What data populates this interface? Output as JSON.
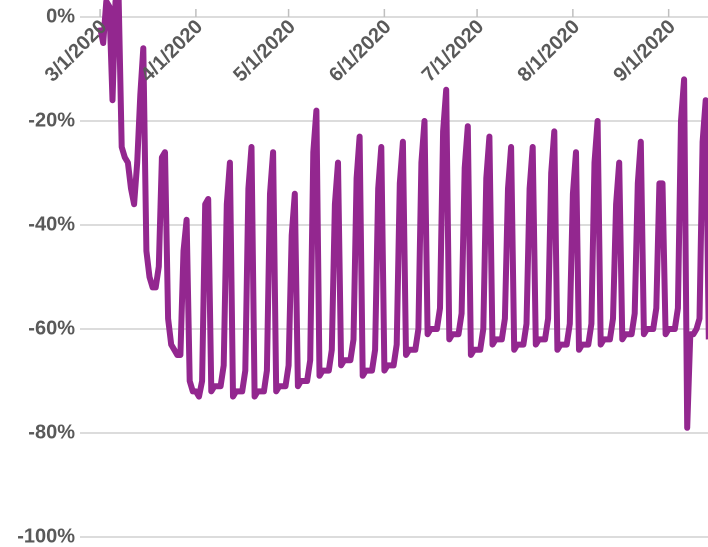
{
  "chart_data": {
    "type": "line",
    "color": "#93278f",
    "x": [
      0,
      1,
      2,
      3,
      4,
      5,
      6,
      7,
      8,
      9,
      10,
      11,
      12,
      13,
      14,
      15,
      16,
      17,
      18,
      19,
      20,
      21,
      22,
      23,
      24,
      25,
      26,
      27,
      28,
      29,
      30,
      31,
      32,
      33,
      34,
      35,
      36,
      37,
      38,
      39,
      40,
      41,
      42,
      43,
      44,
      45,
      46,
      47,
      48,
      49,
      50,
      51,
      52,
      53,
      54,
      55,
      56,
      57,
      58,
      59,
      60,
      61,
      62,
      63,
      64,
      65,
      66,
      67,
      68,
      69,
      70,
      71,
      72,
      73,
      74,
      75,
      76,
      77,
      78,
      79,
      80,
      81,
      82,
      83,
      84,
      85,
      86,
      87,
      88,
      89,
      90,
      91,
      92,
      93,
      94,
      95,
      96,
      97,
      98,
      99,
      100,
      101,
      102,
      103,
      104,
      105,
      106,
      107,
      108,
      109,
      110,
      111,
      112,
      113,
      114,
      115,
      116,
      117,
      118,
      119,
      120,
      121,
      122,
      123,
      124,
      125,
      126,
      127,
      128,
      129,
      130,
      131,
      132,
      133,
      134,
      135,
      136,
      137,
      138,
      139,
      140,
      141,
      142,
      143,
      144,
      145,
      146,
      147,
      148,
      149,
      150,
      151,
      152,
      153,
      154,
      155,
      156,
      157,
      158,
      159,
      160,
      161,
      162,
      163,
      164,
      165,
      166,
      167,
      168,
      169,
      170,
      171,
      172,
      173,
      174,
      175,
      176,
      177,
      178,
      179,
      180,
      181,
      182,
      183,
      184,
      185,
      186,
      187,
      188,
      189,
      190,
      191,
      192,
      193,
      194,
      195,
      196,
      197
    ],
    "values": [
      -2,
      -5,
      3,
      2,
      -16,
      3,
      4,
      -25,
      -27,
      -28,
      -33,
      -36,
      -28,
      -15,
      -6,
      -45,
      -50,
      -52,
      -52,
      -48,
      -27,
      -26,
      -58,
      -63,
      -64,
      -65,
      -65,
      -45,
      -39,
      -70,
      -72,
      -72,
      -73,
      -70,
      -36,
      -35,
      -72,
      -71,
      -71,
      -71,
      -67,
      -36,
      -28,
      -73,
      -72,
      -72,
      -72,
      -68,
      -33,
      -25,
      -73,
      -72,
      -72,
      -72,
      -68,
      -34,
      -26,
      -72,
      -71,
      -71,
      -71,
      -67,
      -42,
      -34,
      -71,
      -70,
      -70,
      -70,
      -66,
      -26,
      -18,
      -69,
      -68,
      -68,
      -68,
      -64,
      -36,
      -28,
      -67,
      -66,
      -66,
      -66,
      -62,
      -31,
      -23,
      -69,
      -68,
      -68,
      -68,
      -64,
      -33,
      -25,
      -68,
      -67,
      -67,
      -67,
      -63,
      -32,
      -24,
      -65,
      -64,
      -64,
      -64,
      -60,
      -28,
      -20,
      -61,
      -60,
      -60,
      -60,
      -56,
      -22,
      -14,
      -62,
      -61,
      -61,
      -61,
      -57,
      -29,
      -21,
      -65,
      -64,
      -64,
      -64,
      -60,
      -31,
      -23,
      -63,
      -62,
      -62,
      -62,
      -58,
      -33,
      -25,
      -64,
      -63,
      -63,
      -63,
      -59,
      -33,
      -25,
      -63,
      -62,
      -62,
      -62,
      -58,
      -30,
      -22,
      -64,
      -63,
      -63,
      -63,
      -59,
      -34,
      -26,
      -64,
      -63,
      -63,
      -63,
      -59,
      -28,
      -20,
      -63,
      -62,
      -62,
      -62,
      -58,
      -36,
      -28,
      -62,
      -61,
      -61,
      -61,
      -57,
      -32,
      -24,
      -61,
      -60,
      -60,
      -60,
      -56,
      -32,
      -32,
      -61,
      -60,
      -60,
      -60,
      -56,
      -20,
      -12,
      -79,
      -61,
      -61,
      -60,
      -58,
      -24,
      -16,
      -62
    ],
    "xlim": [
      -1,
      198
    ],
    "xticks": [
      {
        "value": 0,
        "label": "3/1/2020"
      },
      {
        "value": 31,
        "label": "4/1/2020"
      },
      {
        "value": 61,
        "label": "5/1/2020"
      },
      {
        "value": 92,
        "label": "6/1/2020"
      },
      {
        "value": 122,
        "label": "7/1/2020"
      },
      {
        "value": 153,
        "label": "8/1/2020"
      },
      {
        "value": 184,
        "label": "9/1/2020"
      }
    ],
    "ylim": [
      -100,
      0
    ],
    "yticks": [
      {
        "value": 0,
        "label": "0%"
      },
      {
        "value": -20,
        "label": "-20%"
      },
      {
        "value": -40,
        "label": "-40%"
      },
      {
        "value": -60,
        "label": "-60%"
      },
      {
        "value": -80,
        "label": "-80%"
      },
      {
        "value": -100,
        "label": "-100%"
      }
    ],
    "grid": true
  }
}
